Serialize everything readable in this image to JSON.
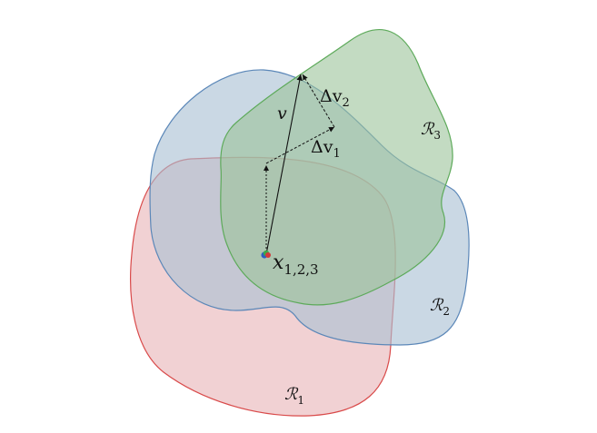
{
  "colors": {
    "region1_fill": "#e8b4b8",
    "region1_stroke": "#d94a4a",
    "region2_fill": "#a9c0d3",
    "region2_stroke": "#5b87b8",
    "region3_fill": "#9bc39a",
    "region3_stroke": "#5daa5a",
    "arrow": "#111111",
    "point_green": "#3aa84a",
    "point_blue": "#2e5fc1",
    "point_red": "#d23a3a"
  },
  "labels": {
    "region1": "ℛ",
    "region1_sub": "1",
    "region2": "ℛ",
    "region2_sub": "2",
    "region3": "ℛ",
    "region3_sub": "3",
    "vector_v": "v",
    "delta_v1": "Δv",
    "delta_v1_sub": "1",
    "delta_v2": "Δv",
    "delta_v2_sub": "2",
    "point": "x",
    "point_sub": "1,2,3"
  }
}
